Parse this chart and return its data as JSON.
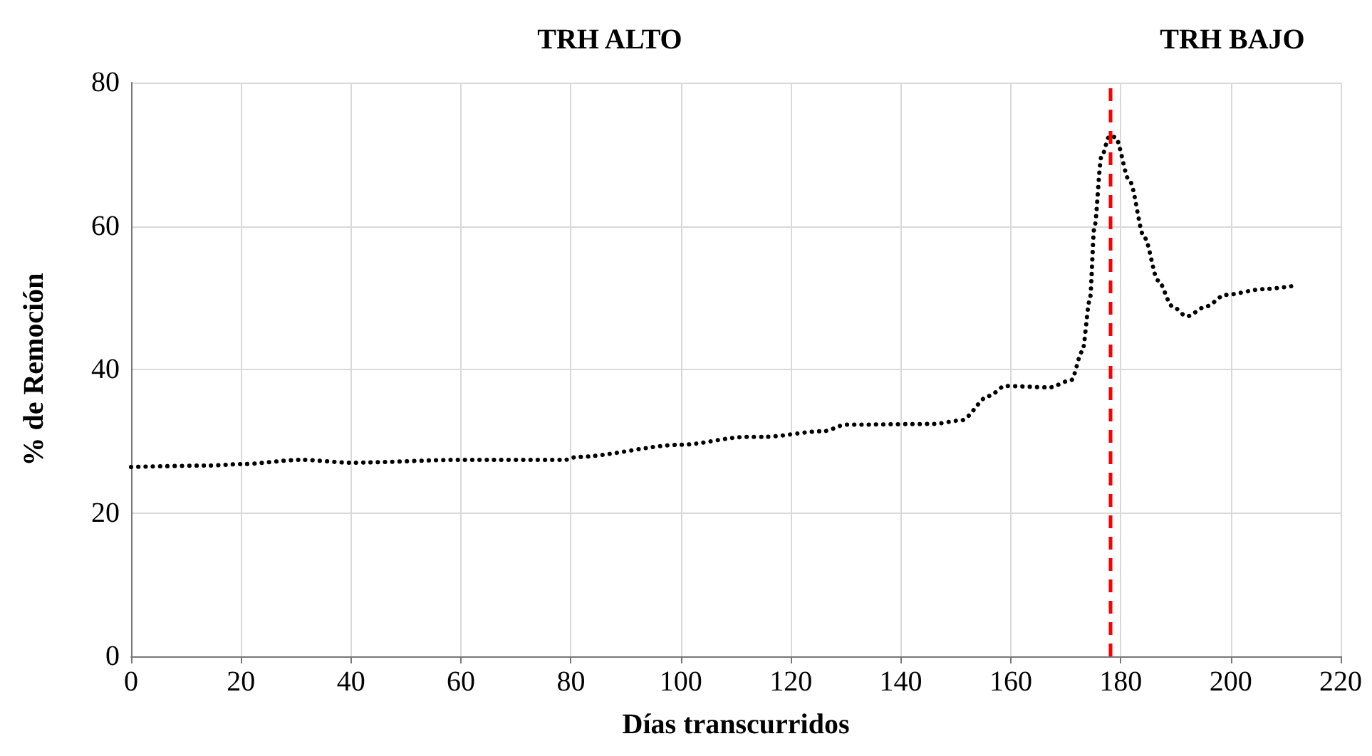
{
  "chart_data": {
    "type": "line",
    "xlabel": "Días transcurridos",
    "ylabel": "% de Remoción",
    "annotations": [
      "TRH ALTO",
      "TRH BAJO"
    ],
    "xlim": [
      0,
      220
    ],
    "xticks": [
      0,
      20,
      40,
      60,
      80,
      100,
      120,
      140,
      160,
      180,
      200,
      220
    ],
    "ylim": [
      0,
      80
    ],
    "yticks": [
      0,
      20,
      40,
      60,
      80
    ],
    "grid": true,
    "marker": "none",
    "line_style": "dotted",
    "ref_lines": [
      {
        "axis": "x",
        "value": 178,
        "color": "#ff0000",
        "line_style": "dashed"
      }
    ],
    "series": [
      {
        "color": "#000000",
        "x": [
          0,
          14,
          20,
          31,
          40,
          60,
          79,
          81,
          100,
          112,
          115,
          126,
          130,
          146,
          151,
          156,
          159,
          167,
          171,
          173,
          174.4,
          175.2,
          176.5,
          178,
          179,
          181.6,
          184.3,
          186.8,
          189.4,
          192,
          195.6,
          199,
          206,
          211
        ],
        "values": [
          26.4,
          26.6,
          26.8,
          27.4,
          27.0,
          27.4,
          27.4,
          27.8,
          29.5,
          30.6,
          30.6,
          31.4,
          32.3,
          32.4,
          32.9,
          36.3,
          37.7,
          37.5,
          38.5,
          42.5,
          49.8,
          59.8,
          69.7,
          72.6,
          72.4,
          66.3,
          58.4,
          52.4,
          48.8,
          47.4,
          48.8,
          50.4,
          51.2,
          51.6
        ]
      }
    ]
  }
}
